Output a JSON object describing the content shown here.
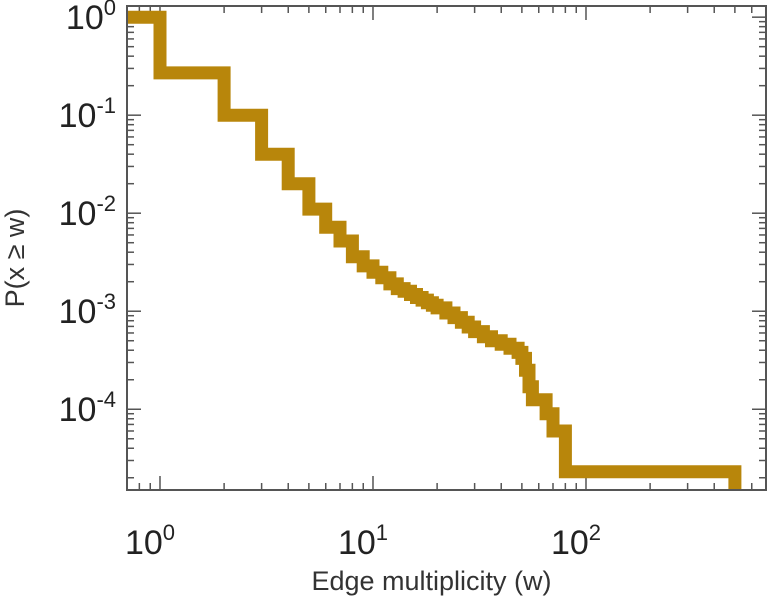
{
  "chart_data": {
    "type": "line",
    "title": "",
    "xlabel": "Edge multiplicity (w)",
    "ylabel": "P(x ≥ w)",
    "x_scale": "log",
    "y_scale": "log",
    "xlim": [
      0.7,
      700
    ],
    "ylim": [
      1.5e-05,
      1.3
    ],
    "grid": false,
    "line_color": "#B8860B",
    "x_ticks": [
      {
        "value": 1,
        "base": "10",
        "exp": "0"
      },
      {
        "value": 10,
        "base": "10",
        "exp": "1"
      },
      {
        "value": 100,
        "base": "10",
        "exp": "2"
      }
    ],
    "y_ticks": [
      {
        "value": 1,
        "base": "10",
        "exp": "0"
      },
      {
        "value": 0.1,
        "base": "10",
        "exp": "-1"
      },
      {
        "value": 0.01,
        "base": "10",
        "exp": "-2"
      },
      {
        "value": 0.001,
        "base": "10",
        "exp": "-3"
      },
      {
        "value": 0.0001,
        "base": "10",
        "exp": "-4"
      }
    ],
    "series": [
      {
        "x": [
          0.7,
          1,
          2,
          3,
          4,
          5,
          6,
          7,
          8,
          9,
          10,
          11,
          12,
          13,
          14,
          15,
          16,
          17,
          18,
          19,
          20,
          22,
          24,
          26,
          28,
          30,
          33,
          36,
          40,
          44,
          48,
          50,
          52,
          54,
          56,
          60,
          65,
          70,
          80,
          500
        ],
        "y": [
          1,
          0.27,
          0.1,
          0.04,
          0.02,
          0.011,
          0.0072,
          0.0052,
          0.0036,
          0.0029,
          0.0025,
          0.0022,
          0.0019,
          0.0017,
          0.0016,
          0.00148,
          0.00138,
          0.0013,
          0.00122,
          0.00115,
          0.00108,
          0.00096,
          0.00086,
          0.00077,
          0.00069,
          0.00062,
          0.00055,
          0.0005,
          0.00046,
          0.00042,
          0.00038,
          0.00033,
          0.00025,
          0.00017,
          0.000125,
          0.000125,
          9e-05,
          6e-05,
          2.3e-05,
          2.3e-05
        ]
      }
    ]
  }
}
